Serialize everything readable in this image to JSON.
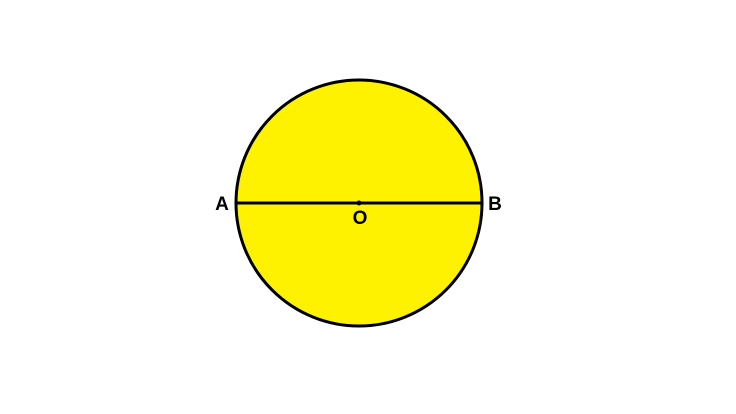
{
  "diagram": {
    "colors": {
      "fill": "#FFF200",
      "stroke": "#000000",
      "background": "#FFFFFF"
    },
    "points": {
      "left_endpoint": "A",
      "right_endpoint": "B",
      "center": "O"
    },
    "shapes": [
      "circle",
      "diameter",
      "center-point"
    ]
  }
}
